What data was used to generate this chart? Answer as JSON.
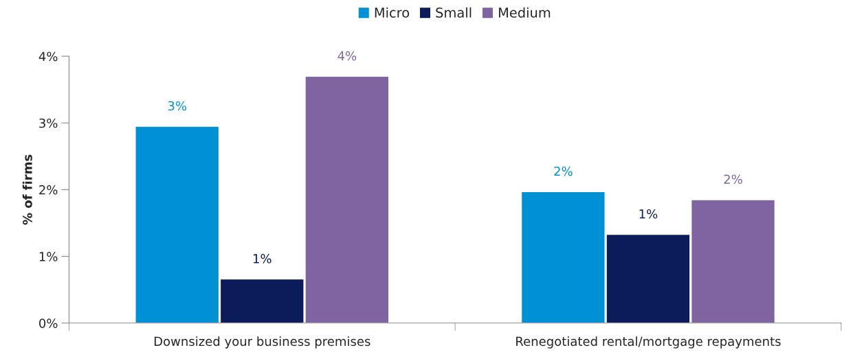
{
  "chart_data": {
    "type": "bar",
    "ylabel": "% of firms",
    "categories": [
      "Downsized your business premises",
      "Renegotiated rental/mortgage repayments"
    ],
    "series": [
      {
        "name": "Micro",
        "color": "#0090d4",
        "values": [
          2.95,
          1.97
        ],
        "value_labels": [
          "3%",
          "2%"
        ]
      },
      {
        "name": "Small",
        "color": "#0c1c5a",
        "values": [
          0.66,
          1.33
        ],
        "value_labels": [
          "1%",
          "1%"
        ]
      },
      {
        "name": "Medium",
        "color": "#8064a2",
        "values": [
          3.7,
          1.85
        ],
        "value_labels": [
          "4%",
          "2%"
        ]
      }
    ],
    "ylim": [
      0,
      4
    ],
    "yticks": [
      {
        "value": 0,
        "label": "0%"
      },
      {
        "value": 1,
        "label": "1%"
      },
      {
        "value": 2,
        "label": "2%"
      },
      {
        "value": 3,
        "label": "3%"
      },
      {
        "value": 4,
        "label": "4%"
      }
    ],
    "legend": "top",
    "grid": false
  }
}
